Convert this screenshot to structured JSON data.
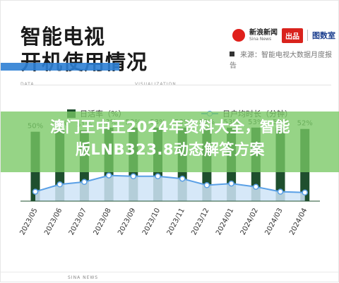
{
  "title": {
    "line1": "智能电视",
    "line2": "开机使用情况"
  },
  "brand": {
    "name": "新浪新闻",
    "sub": "Sina News",
    "pill": "出品",
    "right": "图数室"
  },
  "source": {
    "text": "来源：智能电视大数据月度报告"
  },
  "tags": {
    "left": "DATA",
    "right": "VISUALIZATION"
  },
  "overlay": {
    "line1": "澳门王中王2024年资料大全，智能",
    "line2": "版LNB323.8动态解答方案"
  },
  "footer": {
    "text": "SINA NEWS"
  },
  "colors": {
    "bar": "#1f4f2e",
    "line": "#5aa0e6",
    "area": "#cfe4f7",
    "accent": "#2d7fd4"
  },
  "chart_data": {
    "type": "bar",
    "categories": [
      "2023/05",
      "2023/06",
      "2023/07",
      "2023/08",
      "2023/09",
      "2023/10",
      "2023/11",
      "2023/12",
      "2024/01",
      "2024/02",
      "2024/03",
      "2024/04"
    ],
    "series": [
      {
        "name": "日活率（%）",
        "type": "bar",
        "values": [
          50,
          52,
          51,
          53,
          53,
          53,
          53,
          53,
          53,
          53,
          53,
          52
        ],
        "labels": [
          "50%",
          "52%",
          "51%",
          "53%",
          "53%",
          "53%",
          "53%",
          "53%",
          "53%",
          "53%",
          "53%",
          "52%"
        ]
      },
      {
        "name": "日户均时长（分钟）",
        "type": "area",
        "values": [
          256,
          265,
          268,
          276,
          275,
          275,
          272,
          264,
          266,
          262,
          256,
          255
        ]
      }
    ],
    "legend": "top"
  }
}
